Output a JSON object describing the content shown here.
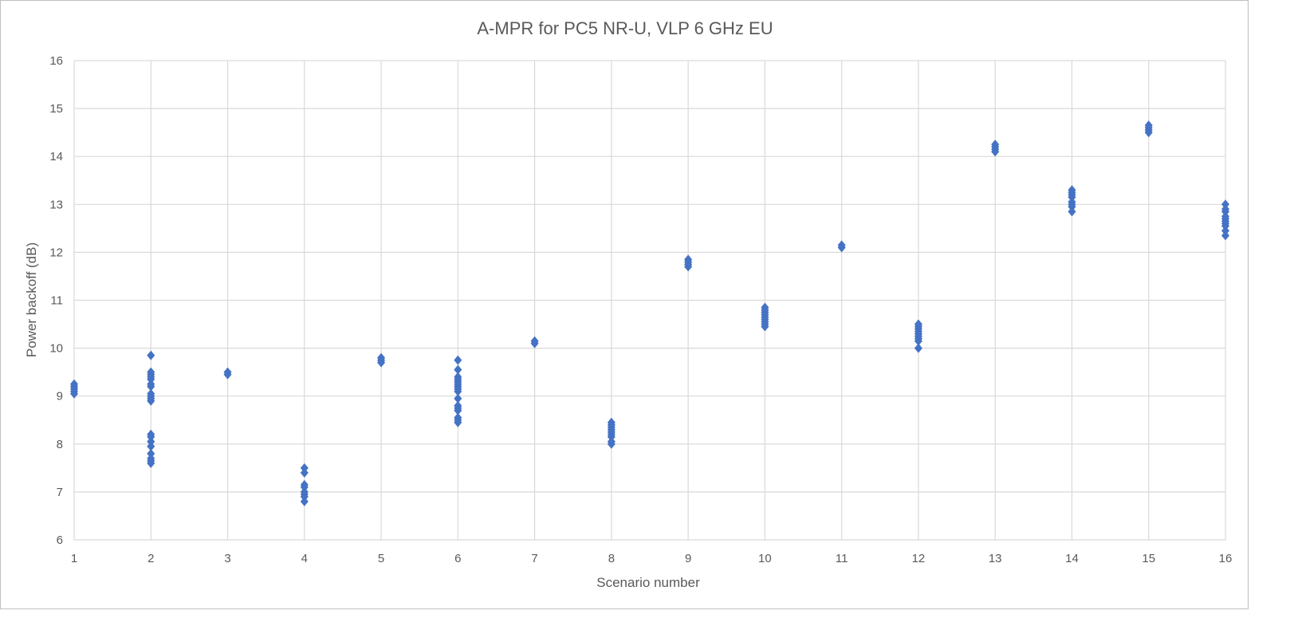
{
  "chart_data": {
    "type": "scatter",
    "title": "A-MPR for PC5 NR-U, VLP 6 GHz EU",
    "xlabel": "Scenario number",
    "ylabel": "Power backoff (dB)",
    "xlim": [
      1,
      16
    ],
    "ylim": [
      6,
      16
    ],
    "x_ticks": [
      1,
      2,
      3,
      4,
      5,
      6,
      7,
      8,
      9,
      10,
      11,
      12,
      13,
      14,
      15,
      16
    ],
    "y_ticks": [
      6,
      7,
      8,
      9,
      10,
      11,
      12,
      13,
      14,
      15,
      16
    ],
    "grid": true,
    "legend": "none",
    "marker": "diamond",
    "marker_color": "#4472C4",
    "series": [
      {
        "points": [
          [
            1,
            9.05
          ],
          [
            1,
            9.1
          ],
          [
            1,
            9.15
          ],
          [
            1,
            9.2
          ],
          [
            1,
            9.25
          ],
          [
            2,
            7.6
          ],
          [
            2,
            7.65
          ],
          [
            2,
            7.7
          ],
          [
            2,
            7.8
          ],
          [
            2,
            7.95
          ],
          [
            2,
            8.05
          ],
          [
            2,
            8.15
          ],
          [
            2,
            8.2
          ],
          [
            2,
            8.9
          ],
          [
            2,
            8.95
          ],
          [
            2,
            9.0
          ],
          [
            2,
            9.05
          ],
          [
            2,
            9.2
          ],
          [
            2,
            9.25
          ],
          [
            2,
            9.35
          ],
          [
            2,
            9.4
          ],
          [
            2,
            9.45
          ],
          [
            2,
            9.5
          ],
          [
            2,
            9.85
          ],
          [
            3,
            9.45
          ],
          [
            3,
            9.5
          ],
          [
            4,
            6.8
          ],
          [
            4,
            6.9
          ],
          [
            4,
            6.95
          ],
          [
            4,
            7.0
          ],
          [
            4,
            7.1
          ],
          [
            4,
            7.15
          ],
          [
            4,
            7.4
          ],
          [
            4,
            7.5
          ],
          [
            5,
            9.7
          ],
          [
            5,
            9.75
          ],
          [
            5,
            9.8
          ],
          [
            6,
            8.45
          ],
          [
            6,
            8.5
          ],
          [
            6,
            8.55
          ],
          [
            6,
            8.7
          ],
          [
            6,
            8.75
          ],
          [
            6,
            8.8
          ],
          [
            6,
            8.95
          ],
          [
            6,
            9.1
          ],
          [
            6,
            9.15
          ],
          [
            6,
            9.2
          ],
          [
            6,
            9.25
          ],
          [
            6,
            9.3
          ],
          [
            6,
            9.35
          ],
          [
            6,
            9.4
          ],
          [
            6,
            9.55
          ],
          [
            6,
            9.75
          ],
          [
            7,
            10.1
          ],
          [
            7,
            10.15
          ],
          [
            8,
            8.0
          ],
          [
            8,
            8.05
          ],
          [
            8,
            8.15
          ],
          [
            8,
            8.2
          ],
          [
            8,
            8.25
          ],
          [
            8,
            8.3
          ],
          [
            8,
            8.35
          ],
          [
            8,
            8.4
          ],
          [
            8,
            8.45
          ],
          [
            9,
            11.7
          ],
          [
            9,
            11.75
          ],
          [
            9,
            11.8
          ],
          [
            9,
            11.85
          ],
          [
            10,
            10.45
          ],
          [
            10,
            10.5
          ],
          [
            10,
            10.55
          ],
          [
            10,
            10.6
          ],
          [
            10,
            10.65
          ],
          [
            10,
            10.7
          ],
          [
            10,
            10.75
          ],
          [
            10,
            10.8
          ],
          [
            10,
            10.85
          ],
          [
            11,
            12.1
          ],
          [
            11,
            12.15
          ],
          [
            12,
            10.0
          ],
          [
            12,
            10.15
          ],
          [
            12,
            10.2
          ],
          [
            12,
            10.25
          ],
          [
            12,
            10.3
          ],
          [
            12,
            10.35
          ],
          [
            12,
            10.4
          ],
          [
            12,
            10.45
          ],
          [
            12,
            10.5
          ],
          [
            13,
            14.1
          ],
          [
            13,
            14.15
          ],
          [
            13,
            14.2
          ],
          [
            13,
            14.25
          ],
          [
            14,
            12.85
          ],
          [
            14,
            12.95
          ],
          [
            14,
            13.0
          ],
          [
            14,
            13.05
          ],
          [
            14,
            13.15
          ],
          [
            14,
            13.2
          ],
          [
            14,
            13.25
          ],
          [
            14,
            13.3
          ],
          [
            15,
            14.5
          ],
          [
            15,
            14.55
          ],
          [
            15,
            14.6
          ],
          [
            15,
            14.65
          ],
          [
            16,
            12.35
          ],
          [
            16,
            12.45
          ],
          [
            16,
            12.55
          ],
          [
            16,
            12.6
          ],
          [
            16,
            12.65
          ],
          [
            16,
            12.7
          ],
          [
            16,
            12.75
          ],
          [
            16,
            12.85
          ],
          [
            16,
            12.9
          ],
          [
            16,
            13.0
          ]
        ]
      }
    ]
  }
}
